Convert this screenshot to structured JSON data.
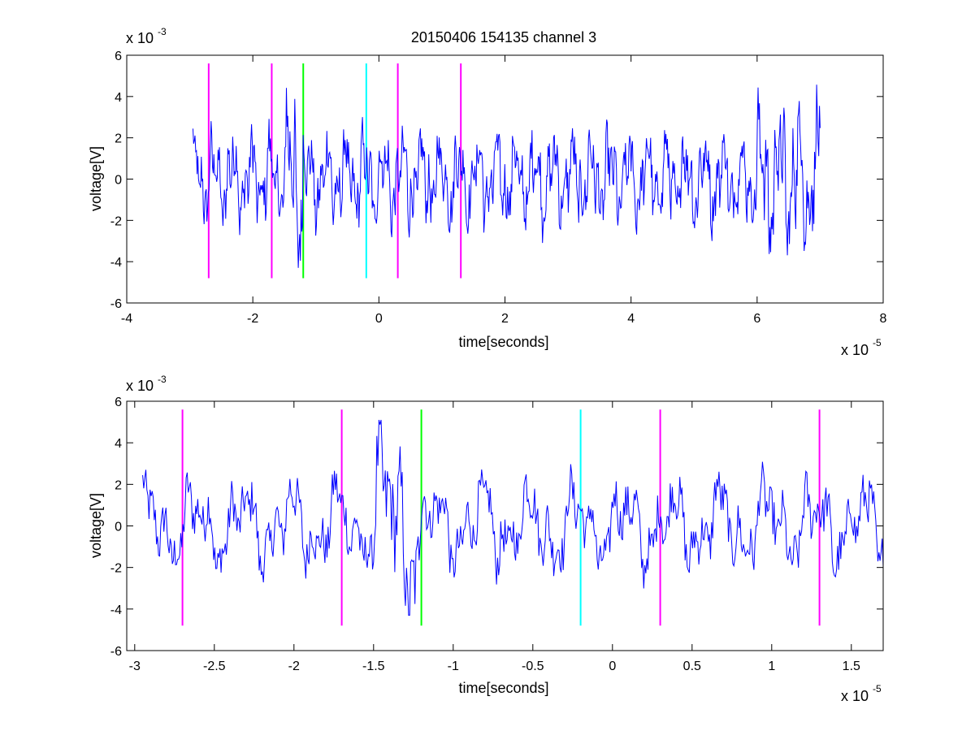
{
  "chart_data": [
    {
      "id": "top",
      "type": "line",
      "title": "20150406 154135 channel 3",
      "xlabel": "time[seconds]",
      "ylabel": "voltage[V]",
      "x_exponent_base": "x 10",
      "x_exponent_power": "-5",
      "y_exponent_base": "x 10",
      "y_exponent_power": "-3",
      "xlim": [
        -4,
        8
      ],
      "ylim": [
        -6,
        6
      ],
      "xticks": [
        "-4",
        "-2",
        "0",
        "2",
        "4",
        "6",
        "8"
      ],
      "yticks": [
        "-6",
        "-4",
        "-2",
        "0",
        "2",
        "4",
        "6"
      ],
      "grid": false,
      "line_color": "#0000ff",
      "signal_range": [
        -2.95,
        7.0
      ],
      "markers": [
        {
          "x": -2.7,
          "color": "#ff00ff"
        },
        {
          "x": -1.7,
          "color": "#ff00ff"
        },
        {
          "x": -1.2,
          "color": "#00ff00"
        },
        {
          "x": -0.2,
          "color": "#00ffff"
        },
        {
          "x": 0.3,
          "color": "#ff00ff"
        },
        {
          "x": 1.3,
          "color": "#ff00ff"
        }
      ],
      "marker_yrange": [
        -4.8,
        5.6
      ]
    },
    {
      "id": "bottom",
      "type": "line",
      "title": "",
      "xlabel": "time[seconds]",
      "ylabel": "voltage[V]",
      "x_exponent_base": "x 10",
      "x_exponent_power": "-5",
      "y_exponent_base": "x 10",
      "y_exponent_power": "-3",
      "xlim": [
        -3.05,
        1.7
      ],
      "ylim": [
        -6,
        6
      ],
      "xticks": [
        "-3",
        "-2.5",
        "-2",
        "-1.5",
        "-1",
        "-0.5",
        "0",
        "0.5",
        "1",
        "1.5"
      ],
      "yticks": [
        "-6",
        "-4",
        "-2",
        "0",
        "2",
        "4",
        "6"
      ],
      "grid": false,
      "line_color": "#0000ff",
      "signal_range": [
        -2.95,
        1.7
      ],
      "markers": [
        {
          "x": -2.7,
          "color": "#ff00ff"
        },
        {
          "x": -1.7,
          "color": "#ff00ff"
        },
        {
          "x": -1.2,
          "color": "#00ff00"
        },
        {
          "x": -0.2,
          "color": "#00ffff"
        },
        {
          "x": 0.3,
          "color": "#ff00ff"
        },
        {
          "x": 1.3,
          "color": "#ff00ff"
        }
      ],
      "marker_yrange": [
        -4.8,
        5.6
      ]
    }
  ]
}
